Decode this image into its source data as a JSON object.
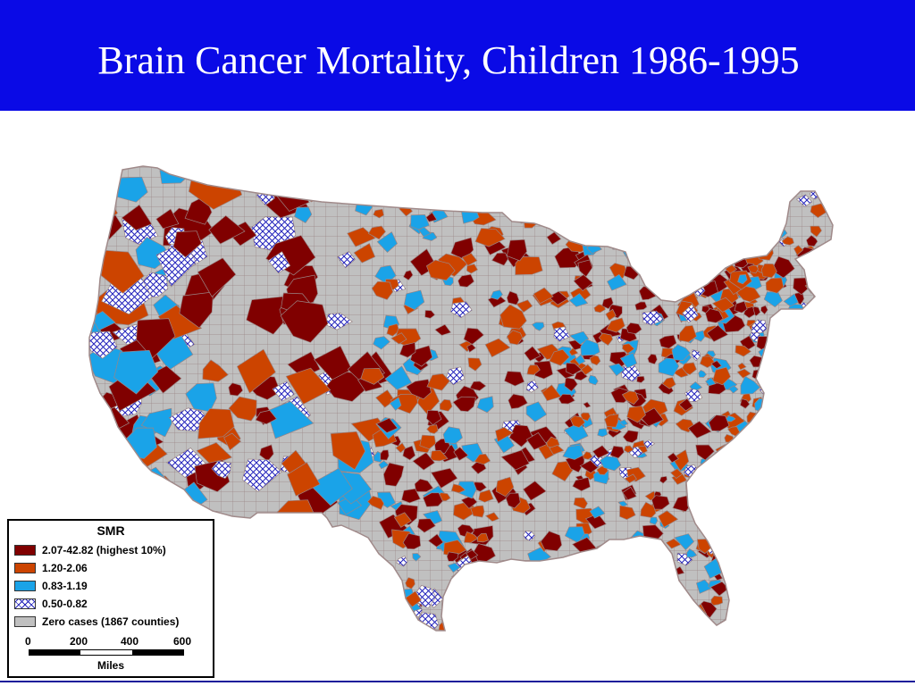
{
  "slide": {
    "title": "Brain Cancer Mortality, Children 1986-1995",
    "title_bar_color": "#0a0ae6",
    "title_color": "#ffffff"
  },
  "map": {
    "subject": "Contiguous United States, county-level SMR",
    "base_color": "#c0c0c0",
    "border_color": "#a08a8a",
    "categories": [
      {
        "id": "highest",
        "color": "#800000",
        "pattern": "solid"
      },
      {
        "id": "high",
        "color": "#cc4400",
        "pattern": "solid"
      },
      {
        "id": "mid",
        "color": "#1aa3e8",
        "pattern": "solid"
      },
      {
        "id": "low",
        "color": "#2222bb",
        "pattern": "crosshatch"
      },
      {
        "id": "zero",
        "color": "#c0c0c0",
        "pattern": "solid"
      }
    ]
  },
  "legend": {
    "title": "SMR",
    "items": [
      {
        "label": "2.07-42.82 (highest 10%)",
        "color": "#800000",
        "pattern": "solid"
      },
      {
        "label": "1.20-2.06",
        "color": "#cc4400",
        "pattern": "solid"
      },
      {
        "label": "0.83-1.19",
        "color": "#1aa3e8",
        "pattern": "solid"
      },
      {
        "label": "0.50-0.82",
        "color": "#2222bb",
        "pattern": "crosshatch"
      },
      {
        "label": "Zero cases (1867 counties)",
        "color": "#c0c0c0",
        "pattern": "solid"
      }
    ],
    "scale": {
      "ticks": [
        "0",
        "200",
        "400",
        "600"
      ],
      "unit": "Miles"
    }
  }
}
